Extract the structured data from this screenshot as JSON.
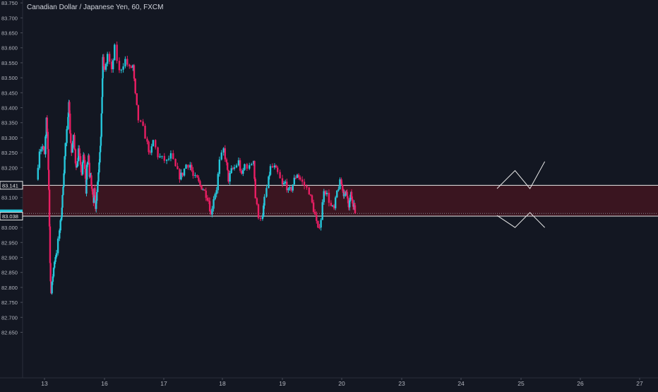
{
  "chart_data": {
    "type": "candlestick",
    "title": "Canadian Dollar / Japanese Yen, 60, FXCM",
    "x_label": "",
    "y_label": "",
    "ylim": [
      82.61,
      83.755
    ],
    "y_ticks": [
      "82.650",
      "82.700",
      "82.750",
      "82.800",
      "82.850",
      "82.900",
      "82.950",
      "83.000",
      "83.050",
      "83.100",
      "83.150",
      "83.200",
      "83.250",
      "83.300",
      "83.350",
      "83.400",
      "83.450",
      "83.500",
      "83.550",
      "83.600",
      "83.650",
      "83.700",
      "83.750"
    ],
    "x_ticks": [
      {
        "label": "13",
        "day": 13
      },
      {
        "label": "16",
        "day": 16
      },
      {
        "label": "17",
        "day": 17
      },
      {
        "label": "18",
        "day": 18
      },
      {
        "label": "19",
        "day": 19
      },
      {
        "label": "20",
        "day": 20
      },
      {
        "label": "23",
        "day": 23
      },
      {
        "label": "24",
        "day": 24
      },
      {
        "label": "25",
        "day": 25
      },
      {
        "label": "26",
        "day": 26
      },
      {
        "label": "27",
        "day": 27
      }
    ],
    "price_labels": [
      {
        "text": "83.141",
        "value": 83.141,
        "style": "outline"
      },
      {
        "text": "83.047",
        "value": 83.047,
        "style": "current"
      },
      {
        "text": "83.038",
        "value": 83.038,
        "style": "outline"
      }
    ],
    "zone": {
      "top": 83.141,
      "bottom": 83.038
    },
    "projection": {
      "up": [
        [
          24.6,
          83.13
        ],
        [
          24.9,
          83.19
        ],
        [
          25.15,
          83.13
        ],
        [
          25.4,
          83.22
        ]
      ],
      "down": [
        [
          24.6,
          83.04
        ],
        [
          24.9,
          83.0
        ],
        [
          25.15,
          83.05
        ],
        [
          25.4,
          83.0
        ]
      ]
    },
    "colors": {
      "background": "#131722",
      "up": "#26c6da",
      "down": "#e91e63",
      "zone_fill": "#3a1520",
      "line": "#e8e8e8",
      "axis_text": "#b2b5be",
      "current_label": "#26c6da"
    },
    "anchors": [
      [
        12.6,
        83.16
      ],
      [
        12.75,
        83.26
      ],
      [
        12.9,
        83.27
      ],
      [
        13.0,
        83.24
      ],
      [
        13.1,
        83.36
      ],
      [
        13.17,
        83.26
      ],
      [
        13.22,
        83.13
      ],
      [
        13.28,
        82.88
      ],
      [
        13.33,
        82.78
      ],
      [
        13.42,
        82.84
      ],
      [
        13.5,
        82.89
      ],
      [
        13.6,
        82.92
      ],
      [
        13.75,
        82.99
      ],
      [
        13.85,
        83.04
      ],
      [
        13.9,
        83.1
      ],
      [
        13.97,
        83.19
      ],
      [
        14.05,
        83.28
      ],
      [
        14.18,
        83.36
      ],
      [
        14.22,
        83.43
      ],
      [
        14.28,
        83.32
      ],
      [
        14.35,
        83.25
      ],
      [
        14.45,
        83.3
      ],
      [
        14.55,
        83.22
      ],
      [
        14.62,
        83.2
      ],
      [
        14.7,
        83.26
      ],
      [
        14.8,
        83.2
      ],
      [
        14.87,
        83.18
      ],
      [
        14.95,
        83.24
      ],
      [
        15.02,
        83.2
      ],
      [
        15.08,
        83.12
      ],
      [
        15.12,
        83.2
      ],
      [
        15.2,
        83.24
      ],
      [
        15.25,
        83.18
      ],
      [
        15.32,
        83.18
      ],
      [
        15.37,
        83.12
      ],
      [
        15.45,
        83.08
      ],
      [
        15.5,
        83.14
      ],
      [
        15.55,
        83.07
      ],
      [
        15.62,
        83.12
      ],
      [
        15.7,
        83.19
      ],
      [
        15.77,
        83.26
      ],
      [
        15.82,
        83.3
      ],
      [
        15.88,
        83.44
      ],
      [
        15.92,
        83.56
      ],
      [
        16.0,
        83.52
      ],
      [
        16.05,
        83.58
      ],
      [
        16.12,
        83.52
      ],
      [
        16.17,
        83.6
      ],
      [
        16.25,
        83.52
      ],
      [
        16.35,
        83.56
      ],
      [
        16.42,
        83.53
      ],
      [
        16.48,
        83.54
      ],
      [
        16.52,
        83.44
      ],
      [
        16.57,
        83.36
      ],
      [
        16.65,
        83.33
      ],
      [
        16.72,
        83.28
      ],
      [
        16.77,
        83.24
      ],
      [
        16.82,
        83.29
      ],
      [
        16.9,
        83.24
      ],
      [
        16.97,
        83.23
      ],
      [
        17.05,
        83.22
      ],
      [
        17.12,
        83.24
      ],
      [
        17.2,
        83.2
      ],
      [
        17.27,
        83.17
      ],
      [
        17.32,
        83.18
      ],
      [
        17.38,
        83.21
      ],
      [
        17.45,
        83.21
      ],
      [
        17.5,
        83.17
      ],
      [
        17.57,
        83.16
      ],
      [
        17.62,
        83.14
      ],
      [
        17.67,
        83.13
      ],
      [
        17.72,
        83.11
      ],
      [
        17.77,
        83.09
      ],
      [
        17.8,
        83.04
      ],
      [
        17.85,
        83.1
      ],
      [
        17.9,
        83.13
      ],
      [
        17.95,
        83.22
      ],
      [
        18.02,
        83.26
      ],
      [
        18.07,
        83.21
      ],
      [
        18.1,
        83.16
      ],
      [
        18.15,
        83.19
      ],
      [
        18.2,
        83.2
      ],
      [
        18.27,
        83.22
      ],
      [
        18.32,
        83.17
      ],
      [
        18.37,
        83.21
      ],
      [
        18.45,
        83.2
      ],
      [
        18.52,
        83.23
      ],
      [
        18.55,
        83.1
      ],
      [
        18.6,
        83.04
      ],
      [
        18.67,
        83.03
      ],
      [
        18.7,
        83.1
      ],
      [
        18.77,
        83.16
      ],
      [
        18.8,
        83.2
      ],
      [
        18.87,
        83.2
      ],
      [
        18.92,
        83.18
      ],
      [
        19.0,
        83.14
      ],
      [
        19.05,
        83.15
      ],
      [
        19.1,
        83.12
      ],
      [
        19.15,
        83.13
      ],
      [
        19.2,
        83.16
      ],
      [
        19.25,
        83.18
      ],
      [
        19.3,
        83.16
      ],
      [
        19.37,
        83.14
      ],
      [
        19.45,
        83.12
      ],
      [
        19.5,
        83.08
      ],
      [
        19.55,
        83.04
      ],
      [
        19.6,
        82.99
      ],
      [
        19.65,
        83.03
      ],
      [
        19.7,
        83.13
      ],
      [
        19.75,
        83.11
      ],
      [
        19.82,
        83.07
      ],
      [
        19.87,
        83.06
      ],
      [
        19.92,
        83.12
      ],
      [
        19.97,
        83.15
      ],
      [
        20.02,
        83.14
      ],
      [
        20.07,
        83.12
      ],
      [
        20.12,
        83.11
      ],
      [
        20.17,
        83.11
      ],
      [
        20.22,
        83.13
      ],
      [
        20.27,
        83.1
      ],
      [
        20.32,
        83.08
      ],
      [
        20.37,
        83.06
      ],
      [
        20.42,
        83.1
      ],
      [
        20.47,
        83.11
      ],
      [
        20.52,
        83.09
      ],
      [
        20.57,
        83.08
      ],
      [
        20.62,
        83.08
      ],
      [
        20.67,
        83.05
      ]
    ]
  }
}
